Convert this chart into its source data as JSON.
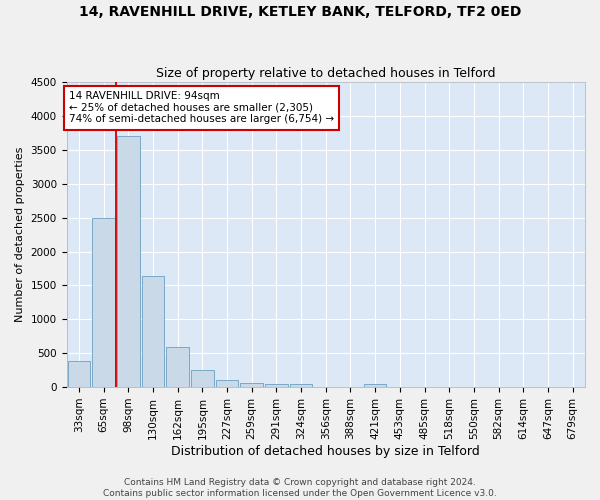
{
  "title": "14, RAVENHILL DRIVE, KETLEY BANK, TELFORD, TF2 0ED",
  "subtitle": "Size of property relative to detached houses in Telford",
  "xlabel": "Distribution of detached houses by size in Telford",
  "ylabel": "Number of detached properties",
  "bar_labels": [
    "33sqm",
    "65sqm",
    "98sqm",
    "130sqm",
    "162sqm",
    "195sqm",
    "227sqm",
    "259sqm",
    "291sqm",
    "324sqm",
    "356sqm",
    "388sqm",
    "421sqm",
    "453sqm",
    "485sqm",
    "518sqm",
    "550sqm",
    "582sqm",
    "614sqm",
    "647sqm",
    "679sqm"
  ],
  "bar_values": [
    380,
    2500,
    3700,
    1640,
    590,
    245,
    105,
    60,
    45,
    45,
    0,
    0,
    50,
    0,
    0,
    0,
    0,
    0,
    0,
    0,
    0
  ],
  "bar_color": "#c9d9e8",
  "bar_edgecolor": "#6a9fc0",
  "vline_color": "#cc0000",
  "vline_bar_index": 2,
  "annotation_text": "14 RAVENHILL DRIVE: 94sqm\n← 25% of detached houses are smaller (2,305)\n74% of semi-detached houses are larger (6,754) →",
  "annotation_box_edgecolor": "#cc0000",
  "annotation_box_facecolor": "#ffffff",
  "ylim": [
    0,
    4500
  ],
  "yticks": [
    0,
    500,
    1000,
    1500,
    2000,
    2500,
    3000,
    3500,
    4000,
    4500
  ],
  "bg_color": "#dce8f5",
  "grid_color": "#ffffff",
  "footer_text": "Contains HM Land Registry data © Crown copyright and database right 2024.\nContains public sector information licensed under the Open Government Licence v3.0.",
  "title_fontsize": 10,
  "subtitle_fontsize": 9,
  "xlabel_fontsize": 9,
  "ylabel_fontsize": 8,
  "tick_fontsize": 7.5,
  "footer_fontsize": 6.5,
  "annotation_fontsize": 7.5
}
